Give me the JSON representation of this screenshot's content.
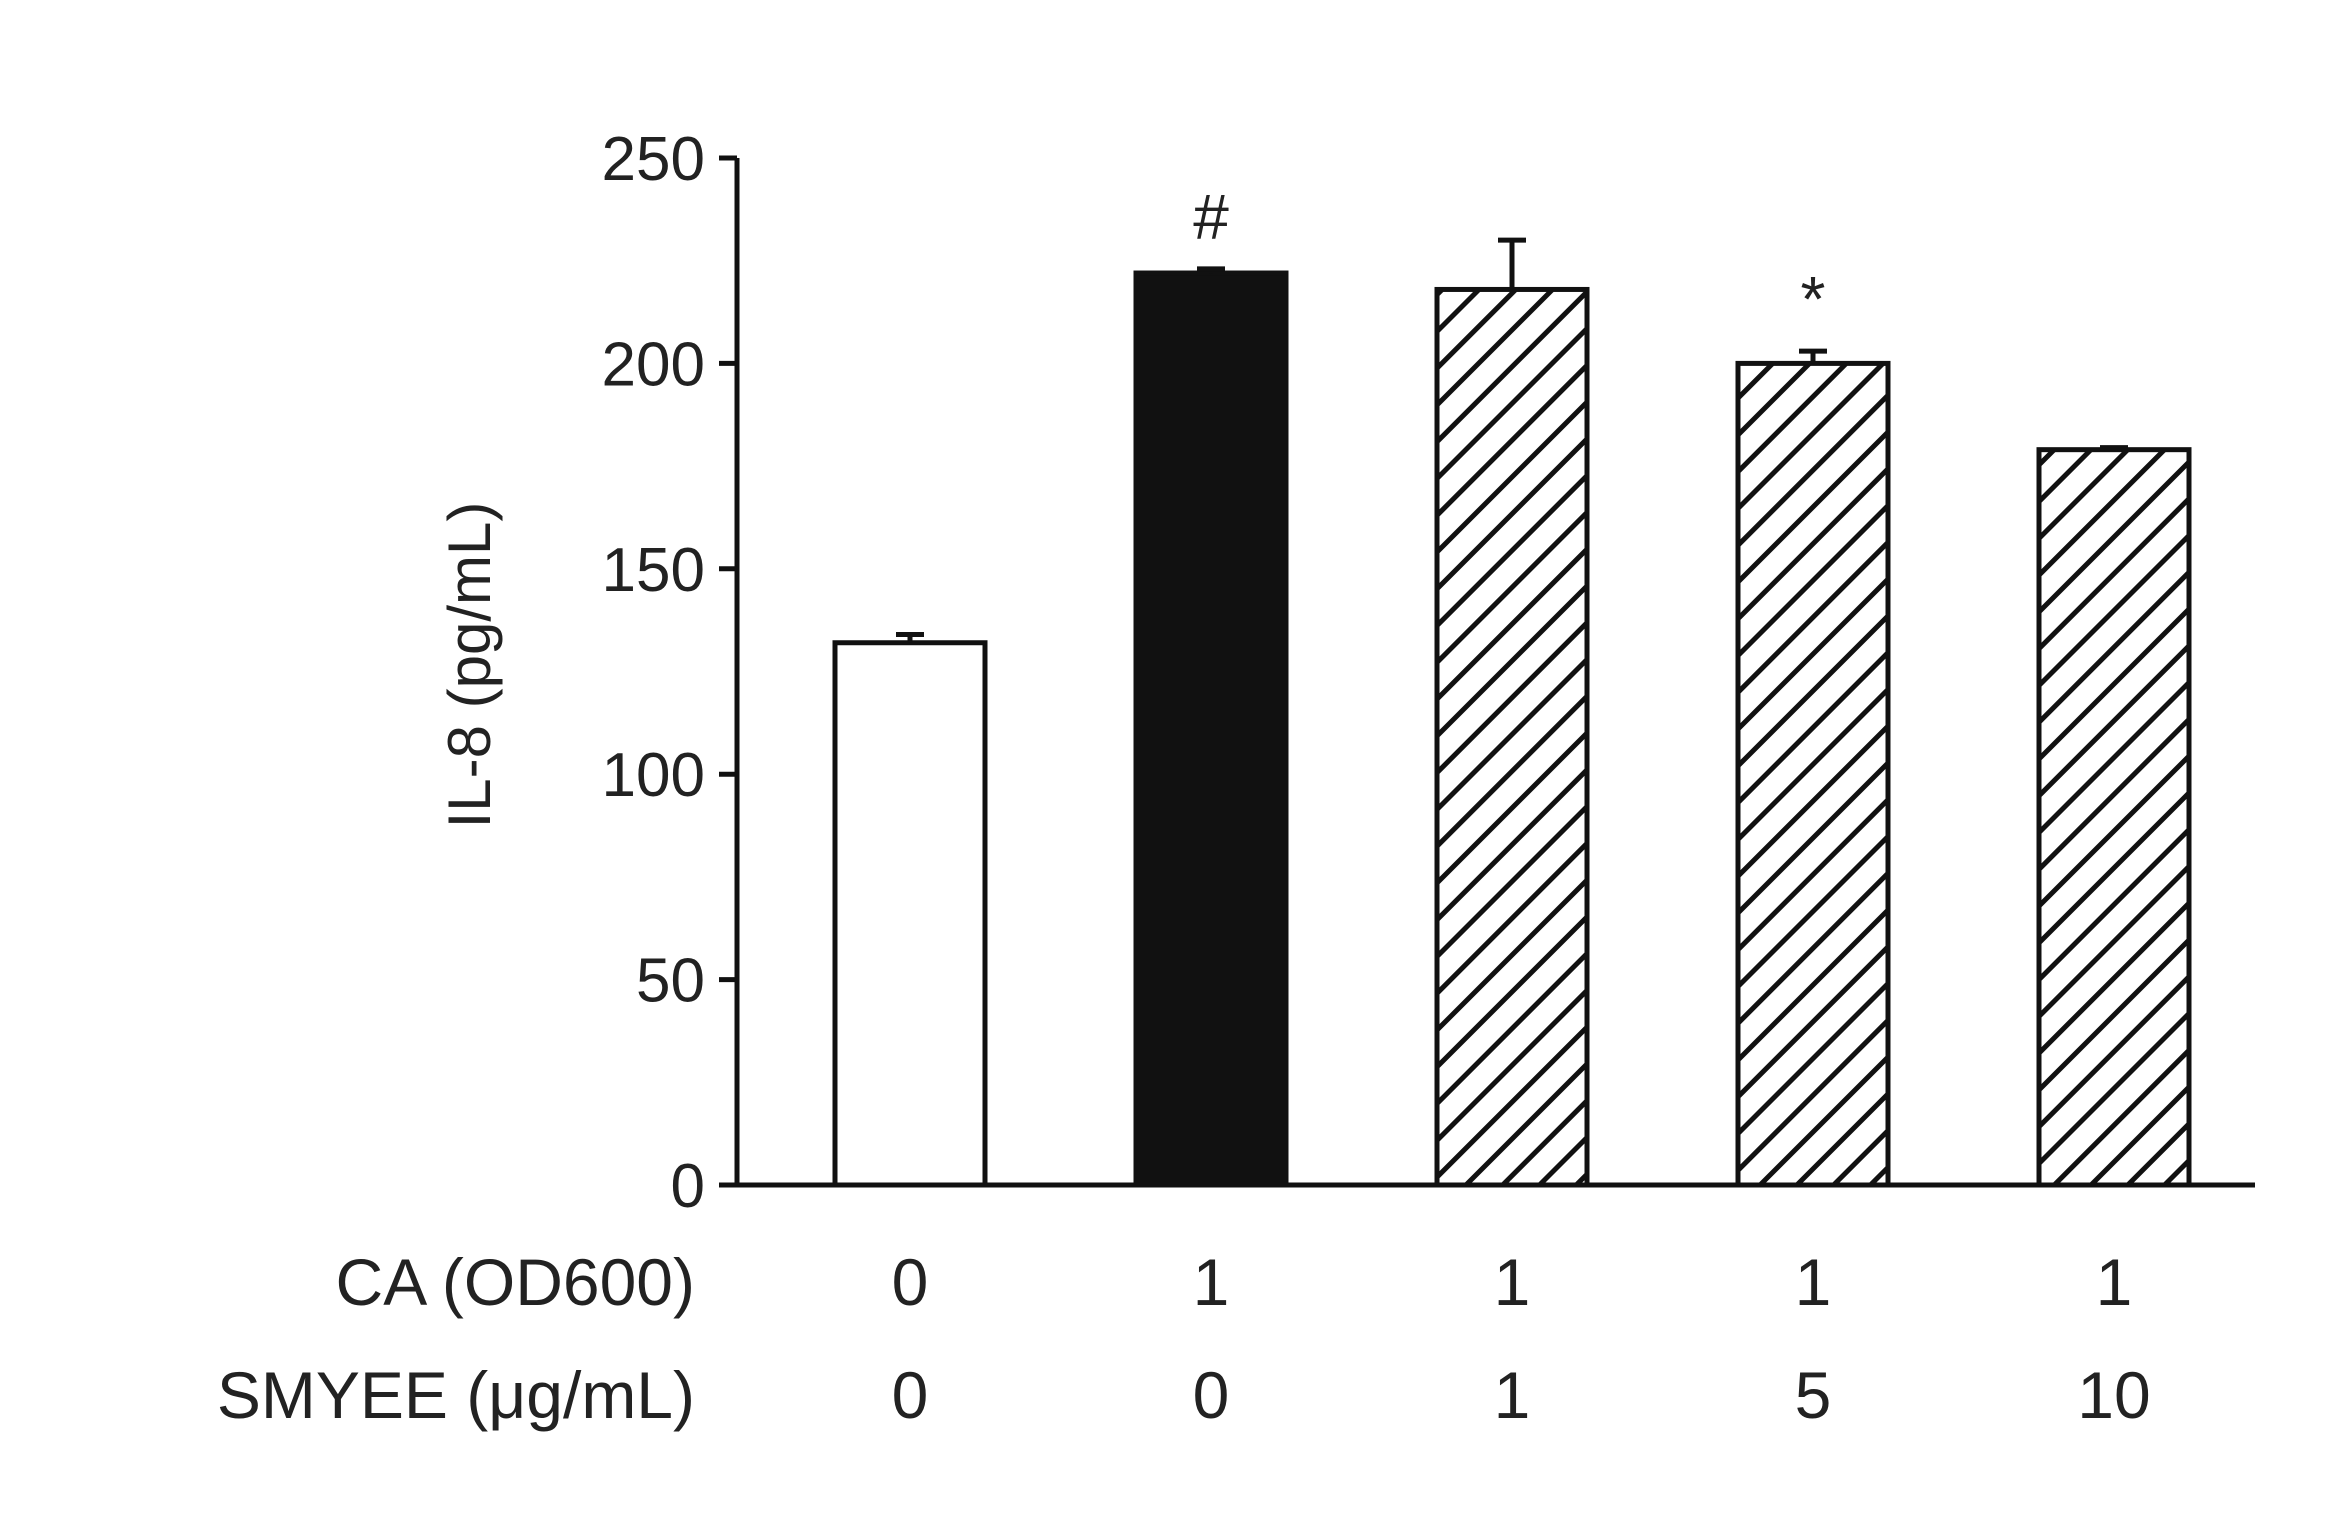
{
  "chart_data": {
    "type": "bar",
    "ylabel": "IL-8 (pg/mL)",
    "xlabel": "",
    "ylim": [
      0,
      250
    ],
    "yticks": [
      0,
      50,
      100,
      150,
      200,
      250
    ],
    "grid": false,
    "legend": "none",
    "categories": [
      "0 / 0",
      "1 / 0",
      "1 / 1",
      "1 / 5",
      "1 / 10"
    ],
    "values": [
      132,
      222,
      218,
      200,
      179
    ],
    "errors": [
      2,
      1,
      12,
      3,
      0.5
    ],
    "fills": [
      "white",
      "black",
      "hatched",
      "hatched",
      "hatched"
    ],
    "annotations": [
      "",
      "#",
      "",
      "*",
      ""
    ],
    "rows": [
      {
        "label": "CA (OD600)",
        "values": [
          "0",
          "1",
          "1",
          "1",
          "1"
        ]
      },
      {
        "label": "SMYEE (μg/mL)",
        "values": [
          "0",
          "0",
          "1",
          "5",
          "10"
        ]
      }
    ]
  },
  "colors": {
    "ink": "#111111",
    "text": "#222222",
    "background": "#ffffff"
  }
}
